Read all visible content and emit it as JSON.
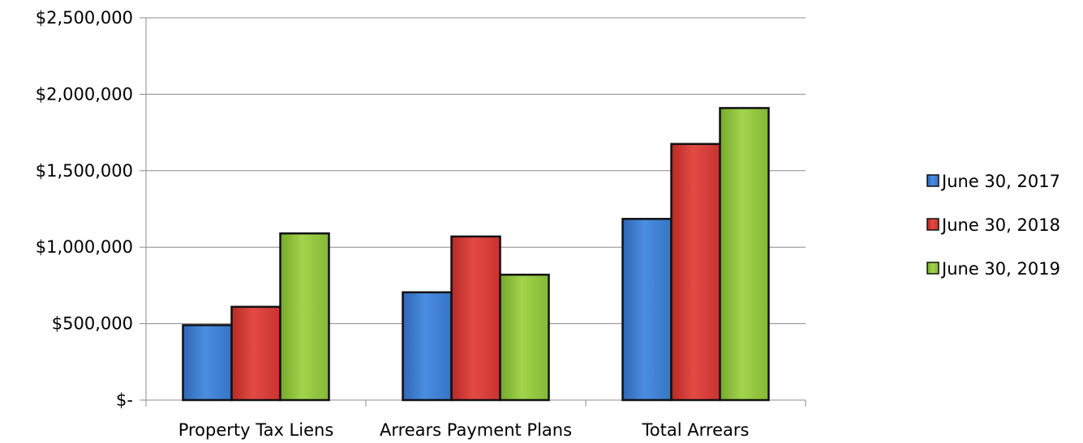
{
  "chart_data": {
    "type": "bar",
    "categories": [
      "Property Tax Liens",
      "Arrears Payment Plans",
      "Total Arrears"
    ],
    "series": [
      {
        "name": "June 30, 2017",
        "values": [
          490000,
          705000,
          1185000
        ],
        "color": "#3c7dd0"
      },
      {
        "name": "June 30, 2018",
        "values": [
          610000,
          1070000,
          1675000
        ],
        "color": "#d63b36"
      },
      {
        "name": "June 30, 2019",
        "values": [
          1090000,
          820000,
          1910000
        ],
        "color": "#8fc43a"
      }
    ],
    "ylim": [
      0,
      2500000
    ],
    "y_ticks": [
      0,
      500000,
      1000000,
      1500000,
      2000000,
      2500000
    ],
    "y_tick_labels": [
      "$-",
      "$500,000",
      "$1,000,000",
      "$1,500,000",
      "$2,000,000",
      "$2,500,000"
    ],
    "grid": true,
    "legend_position": "right"
  }
}
